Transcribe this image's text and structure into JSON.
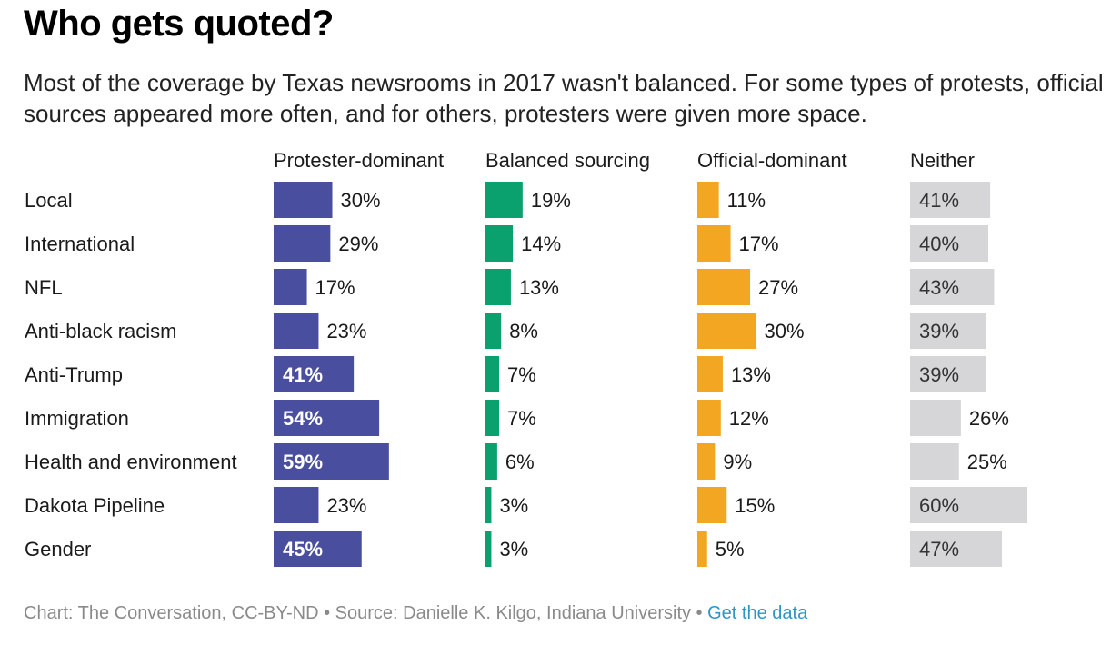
{
  "header": {
    "title": "Who gets quoted?",
    "subtitle": "Most of the coverage by Texas newsrooms in 2017 wasn't balanced. For some types of protests, official sources appeared more often, and for others, protesters were given more space."
  },
  "footer": {
    "credit": "Chart: The Conversation, CC-BY-ND • Source: Danielle K. Kilgo, Indiana University • ",
    "link_label": "Get the data"
  },
  "colors": {
    "protester": "#4a4e9e",
    "balanced": "#0aa16e",
    "official": "#f3a621",
    "neither": "#d6d6d9"
  },
  "chart_data": {
    "type": "bar",
    "layout": "small-multiples-horizontal",
    "categories": [
      "Local",
      "International",
      "NFL",
      "Anti-black racism",
      "Anti-Trump",
      "Immigration",
      "Health and environment",
      "Dakota Pipeline",
      "Gender"
    ],
    "series": [
      {
        "name": "Protester-dominant",
        "values": [
          30,
          29,
          17,
          23,
          41,
          54,
          59,
          23,
          45
        ]
      },
      {
        "name": "Balanced sourcing",
        "values": [
          19,
          14,
          13,
          8,
          7,
          7,
          6,
          3,
          3
        ]
      },
      {
        "name": "Official-dominant",
        "values": [
          11,
          17,
          27,
          30,
          13,
          12,
          9,
          15,
          5
        ]
      },
      {
        "name": "Neither",
        "values": [
          41,
          40,
          43,
          39,
          39,
          26,
          25,
          60,
          47
        ]
      }
    ],
    "unit": "%",
    "xlim": [
      0,
      100
    ],
    "grid": false
  }
}
